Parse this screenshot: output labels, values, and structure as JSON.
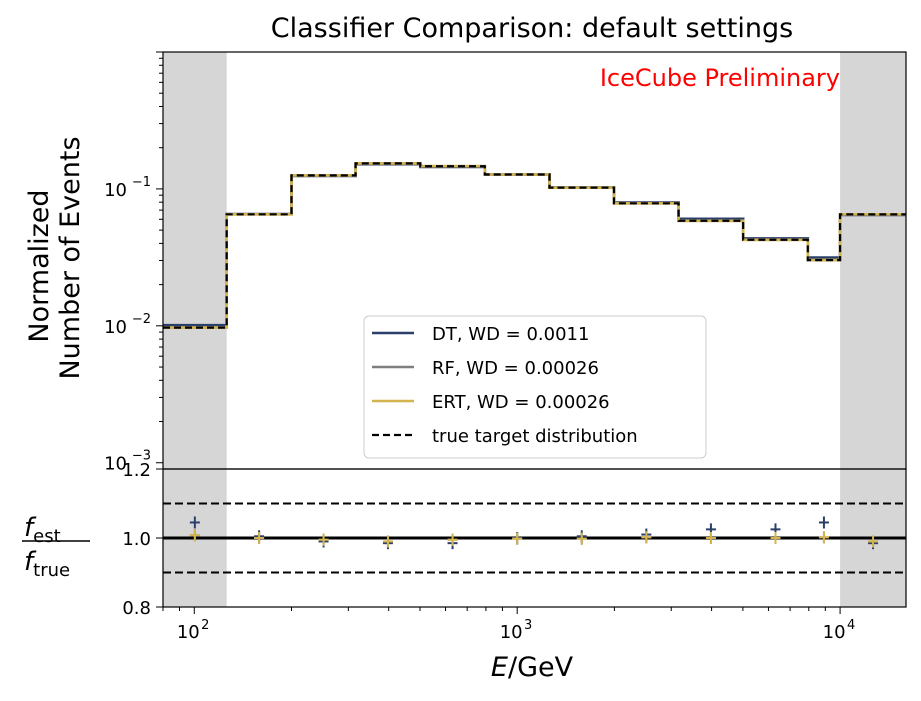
{
  "chart_data": {
    "type": "line",
    "title": "Classifier Comparison: default settings",
    "watermark": "IceCube Preliminary",
    "watermark_color": "#ff0000",
    "xlabel_italic": "E",
    "xlabel_rest": "/GeV",
    "xscale": "log",
    "xlim": [
      80,
      16000
    ],
    "top_panel": {
      "ylabel_line1": "Normalized",
      "ylabel_line2": "Number of Events",
      "yscale": "log",
      "ylim": [
        0.0009,
        1.0
      ],
      "y_ticks": [
        {
          "value": 0.1,
          "base": "10",
          "exp": "−1"
        },
        {
          "value": 0.01,
          "base": "10",
          "exp": "−2"
        },
        {
          "value": 0.001,
          "base": "10",
          "exp": "−3"
        }
      ]
    },
    "bottom_panel": {
      "ylabel_num": "f",
      "ylabel_num_sub": "est",
      "ylabel_den": "f",
      "ylabel_den_sub": "true",
      "ylim": [
        0.8,
        1.2
      ],
      "y_ticks": [
        "0.8",
        "1.0",
        "1.2"
      ],
      "reference_line": 1.0,
      "band_lines": [
        0.9,
        1.1
      ]
    },
    "x_ticks": [
      {
        "value": 100,
        "base": "10",
        "exp": "2"
      },
      {
        "value": 1000,
        "base": "10",
        "exp": "3"
      },
      {
        "value": 10000,
        "base": "10",
        "exp": "4"
      }
    ],
    "shaded_regions": [
      [
        80,
        126
      ],
      [
        10000,
        16000
      ]
    ],
    "shade_color": "#d6d6d6",
    "bin_edges": [
      80,
      126,
      200,
      316,
      501,
      794,
      1259,
      1995,
      3162,
      5012,
      7943,
      10000,
      16000
    ],
    "series": [
      {
        "name": "DT, WD = 0.0011",
        "color": "#2b3f6b",
        "values": [
          0.0101,
          0.0655,
          0.1245,
          0.1515,
          0.1445,
          0.1275,
          0.1025,
          0.0795,
          0.0605,
          0.0435,
          0.0315,
          0.0645
        ],
        "ratios": [
          1.045,
          1.005,
          0.99,
          0.985,
          0.985,
          1.0,
          1.005,
          1.01,
          1.025,
          1.025,
          1.045,
          0.985
        ]
      },
      {
        "name": "RF, WD = 0.00026",
        "color": "#7f7f7f",
        "values": [
          0.0097,
          0.0652,
          0.1255,
          0.1535,
          0.1465,
          0.1275,
          0.102,
          0.0785,
          0.0585,
          0.0425,
          0.0302,
          0.0652
        ],
        "ratios": [
          1.008,
          1.0,
          0.995,
          0.99,
          0.995,
          0.998,
          0.998,
          1.002,
          1.0,
          1.0,
          1.002,
          0.99
        ]
      },
      {
        "name": "ERT, WD = 0.00026",
        "color": "#d4b44e",
        "values": [
          0.0097,
          0.0652,
          0.1255,
          0.1535,
          0.1465,
          0.1275,
          0.102,
          0.0785,
          0.0585,
          0.0425,
          0.0302,
          0.0652
        ],
        "ratios": [
          1.008,
          1.0,
          0.995,
          0.99,
          0.995,
          0.998,
          0.998,
          1.002,
          1.0,
          1.0,
          1.002,
          0.99
        ]
      },
      {
        "name": "true target distribution",
        "color": "#000000",
        "dashed": true,
        "values": [
          0.0097,
          0.0652,
          0.1255,
          0.1535,
          0.1465,
          0.1275,
          0.102,
          0.0785,
          0.0585,
          0.0425,
          0.0302,
          0.0652
        ]
      }
    ],
    "legend_position": "center"
  }
}
